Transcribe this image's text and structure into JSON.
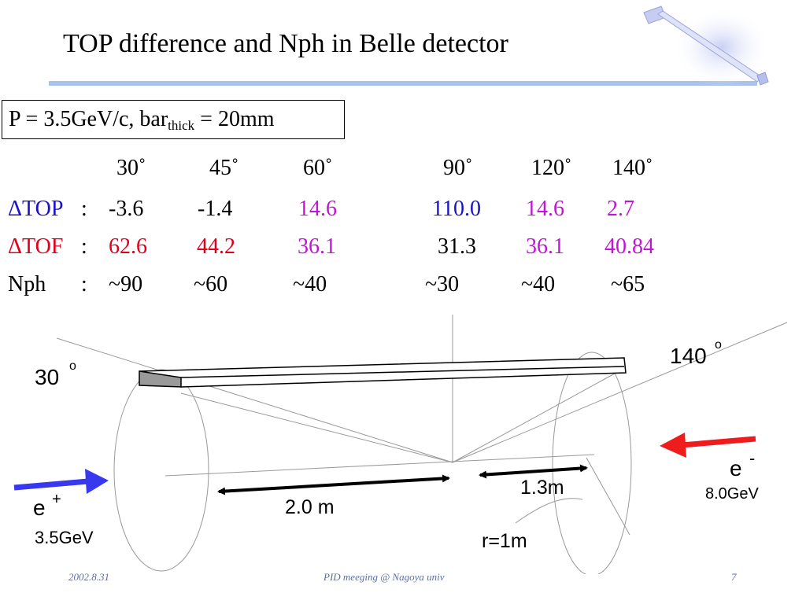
{
  "slide": {
    "title": "TOP difference and Nph in Belle detector",
    "params": {
      "prefix": "P = 3.5GeV/c, bar",
      "sub": "thick",
      "suffix": " = 20mm"
    }
  },
  "table": {
    "angles": [
      "30˚",
      "45˚",
      "60˚",
      "90˚",
      "120˚",
      "140˚"
    ],
    "rows": [
      {
        "label": "ΔTOP",
        "sep": ":",
        "values": [
          "-3.6",
          "-1.4",
          "14.6",
          "110.0",
          "14.6",
          "2.7"
        ]
      },
      {
        "label": "ΔTOF",
        "sep": ":",
        "values": [
          "62.6",
          "44.2",
          "36.1",
          "31.3",
          "36.1",
          "40.84"
        ]
      },
      {
        "label": "Nph",
        "sep": ":",
        "values": [
          "~90",
          "~60",
          "~40",
          "~30",
          "~40",
          "~65"
        ]
      }
    ]
  },
  "diagram": {
    "angle_left": "30",
    "angle_right": "140",
    "degree_mark": "o",
    "positron": {
      "label": "e",
      "charge": "+",
      "energy": "3.5GeV"
    },
    "electron": {
      "label": "e",
      "charge": "-",
      "energy": "8.0GeV"
    },
    "dist_long": "2.0 m",
    "dist_short": "1.3m",
    "radius": "r=1m",
    "colors": {
      "positron_arrow": "#3838ee",
      "electron_arrow": "#ee1c1c"
    }
  },
  "footer": {
    "date": "2002.8.31",
    "event": "PID meeging @ Nagoya univ",
    "page": "7"
  }
}
